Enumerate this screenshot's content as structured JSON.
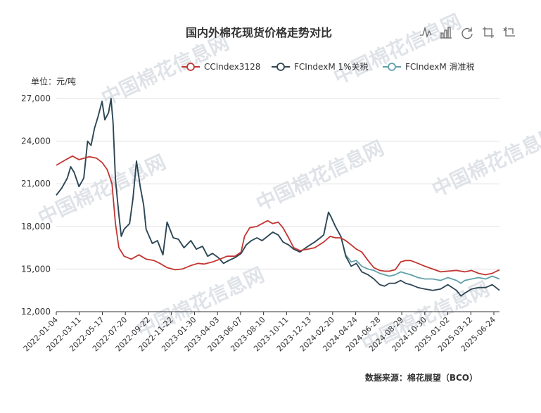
{
  "colors": {
    "s1": "#c23531",
    "s2": "#2f4554",
    "s3": "#61a0a8"
  },
  "toolbox": [
    {
      "name": "line-chart-icon"
    },
    {
      "name": "bar-chart-icon"
    },
    {
      "name": "restore-icon"
    },
    {
      "name": "zoom-icon"
    },
    {
      "name": "zoom-reset-icon"
    }
  ],
  "watermark": "中国棉花信息网",
  "chart_data": {
    "type": "line",
    "title": "国内外棉花现货价格走势对比",
    "unit_label": "单位：元/吨",
    "source": "数据来源：棉花展望（BCO）",
    "ylim": [
      12000,
      27000
    ],
    "yticks": [
      "12,000",
      "15,000",
      "18,000",
      "21,000",
      "24,000",
      "27,000"
    ],
    "ytick_values": [
      12000,
      15000,
      18000,
      21000,
      24000,
      27000
    ],
    "xlim": [
      "2022-01-04",
      "2025-07-15"
    ],
    "xticks": [
      "2022-01-04",
      "2022-03-11",
      "2022-05-17",
      "2022-07-20",
      "2022-09-22",
      "2022-11-22",
      "2023-01-30",
      "2023-04-03",
      "2023-06-07",
      "2023-08-10",
      "2023-10-11",
      "2023-12-13",
      "2024-02-20",
      "2024-04-24",
      "2024-06-28",
      "2024-08-29",
      "2024-10-30",
      "2025-01-02",
      "2025-03-12",
      "2025-06-24"
    ],
    "grid": true,
    "legend_position": "top-right",
    "series": [
      {
        "name": "CCIndex3128",
        "points": [
          [
            "2022-01-04",
            22300
          ],
          [
            "2022-02-01",
            22700
          ],
          [
            "2022-02-20",
            22950
          ],
          [
            "2022-03-11",
            22700
          ],
          [
            "2022-04-10",
            22900
          ],
          [
            "2022-05-01",
            22800
          ],
          [
            "2022-05-17",
            22500
          ],
          [
            "2022-06-01",
            22000
          ],
          [
            "2022-06-15",
            21000
          ],
          [
            "2022-06-25",
            18200
          ],
          [
            "2022-07-05",
            16500
          ],
          [
            "2022-07-20",
            15900
          ],
          [
            "2022-08-10",
            15700
          ],
          [
            "2022-09-01",
            16000
          ],
          [
            "2022-09-22",
            15700
          ],
          [
            "2022-10-15",
            15600
          ],
          [
            "2022-11-01",
            15400
          ],
          [
            "2022-11-22",
            15100
          ],
          [
            "2022-12-15",
            14950
          ],
          [
            "2023-01-05",
            15000
          ],
          [
            "2023-01-30",
            15250
          ],
          [
            "2023-02-20",
            15400
          ],
          [
            "2023-03-10",
            15350
          ],
          [
            "2023-04-03",
            15500
          ],
          [
            "2023-04-25",
            15700
          ],
          [
            "2023-05-15",
            15900
          ],
          [
            "2023-06-07",
            15900
          ],
          [
            "2023-06-25",
            16200
          ],
          [
            "2023-07-05",
            17300
          ],
          [
            "2023-07-20",
            17900
          ],
          [
            "2023-08-10",
            18000
          ],
          [
            "2023-08-25",
            18200
          ],
          [
            "2023-09-10",
            18400
          ],
          [
            "2023-09-25",
            18200
          ],
          [
            "2023-10-11",
            18300
          ],
          [
            "2023-10-25",
            17900
          ],
          [
            "2023-11-10",
            17200
          ],
          [
            "2023-11-25",
            16500
          ],
          [
            "2023-12-13",
            16300
          ],
          [
            "2024-01-05",
            16400
          ],
          [
            "2024-01-25",
            16500
          ],
          [
            "2024-02-20",
            16900
          ],
          [
            "2024-03-10",
            17300
          ],
          [
            "2024-03-25",
            17200
          ],
          [
            "2024-04-10",
            17200
          ],
          [
            "2024-04-24",
            17000
          ],
          [
            "2024-05-10",
            16700
          ],
          [
            "2024-05-25",
            16400
          ],
          [
            "2024-06-10",
            16200
          ],
          [
            "2024-06-28",
            15600
          ],
          [
            "2024-07-15",
            15100
          ],
          [
            "2024-08-01",
            14900
          ],
          [
            "2024-08-15",
            14850
          ],
          [
            "2024-08-29",
            14850
          ],
          [
            "2024-09-15",
            14950
          ],
          [
            "2024-10-01",
            15500
          ],
          [
            "2024-10-15",
            15600
          ],
          [
            "2024-10-30",
            15600
          ],
          [
            "2024-11-20",
            15400
          ],
          [
            "2024-12-10",
            15200
          ],
          [
            "2025-01-02",
            15000
          ],
          [
            "2025-01-25",
            14800
          ],
          [
            "2025-02-15",
            14850
          ],
          [
            "2025-03-12",
            14900
          ],
          [
            "2025-04-05",
            14800
          ],
          [
            "2025-04-25",
            14900
          ],
          [
            "2025-05-15",
            14700
          ],
          [
            "2025-06-05",
            14600
          ],
          [
            "2025-06-24",
            14700
          ],
          [
            "2025-07-15",
            14950
          ]
        ]
      },
      {
        "name": "FCIndexM 1%关税",
        "points": [
          [
            "2022-01-04",
            20200
          ],
          [
            "2022-01-20",
            20700
          ],
          [
            "2022-02-05",
            21400
          ],
          [
            "2022-02-15",
            22200
          ],
          [
            "2022-02-25",
            21800
          ],
          [
            "2022-03-11",
            20800
          ],
          [
            "2022-03-25",
            21400
          ],
          [
            "2022-04-05",
            24000
          ],
          [
            "2022-04-15",
            23700
          ],
          [
            "2022-04-25",
            24900
          ],
          [
            "2022-05-05",
            25700
          ],
          [
            "2022-05-17",
            26800
          ],
          [
            "2022-05-25",
            25500
          ],
          [
            "2022-06-05",
            26000
          ],
          [
            "2022-06-12",
            27000
          ],
          [
            "2022-06-18",
            25300
          ],
          [
            "2022-06-25",
            21300
          ],
          [
            "2022-07-05",
            18800
          ],
          [
            "2022-07-12",
            17300
          ],
          [
            "2022-07-20",
            17800
          ],
          [
            "2022-08-05",
            18200
          ],
          [
            "2022-08-15",
            20000
          ],
          [
            "2022-08-25",
            22600
          ],
          [
            "2022-09-05",
            20800
          ],
          [
            "2022-09-15",
            19500
          ],
          [
            "2022-09-22",
            17800
          ],
          [
            "2022-10-10",
            16800
          ],
          [
            "2022-10-25",
            17000
          ],
          [
            "2022-11-10",
            16000
          ],
          [
            "2022-11-22",
            18300
          ],
          [
            "2022-12-10",
            17200
          ],
          [
            "2022-12-25",
            17100
          ],
          [
            "2023-01-10",
            16500
          ],
          [
            "2023-01-30",
            17000
          ],
          [
            "2023-02-15",
            16400
          ],
          [
            "2023-03-05",
            16600
          ],
          [
            "2023-03-20",
            15900
          ],
          [
            "2023-04-03",
            16100
          ],
          [
            "2023-04-20",
            15800
          ],
          [
            "2023-05-05",
            15400
          ],
          [
            "2023-05-20",
            15600
          ],
          [
            "2023-06-07",
            15800
          ],
          [
            "2023-06-25",
            16100
          ],
          [
            "2023-07-10",
            16700
          ],
          [
            "2023-07-25",
            17000
          ],
          [
            "2023-08-10",
            17200
          ],
          [
            "2023-08-25",
            17000
          ],
          [
            "2023-09-10",
            17300
          ],
          [
            "2023-09-25",
            17600
          ],
          [
            "2023-10-11",
            17400
          ],
          [
            "2023-10-25",
            16900
          ],
          [
            "2023-11-10",
            16700
          ],
          [
            "2023-11-25",
            16400
          ],
          [
            "2023-12-13",
            16200
          ],
          [
            "2024-01-05",
            16600
          ],
          [
            "2024-01-25",
            16900
          ],
          [
            "2024-02-10",
            17200
          ],
          [
            "2024-02-20",
            17400
          ],
          [
            "2024-03-05",
            19000
          ],
          [
            "2024-03-12",
            18700
          ],
          [
            "2024-03-25",
            18000
          ],
          [
            "2024-04-10",
            17300
          ],
          [
            "2024-04-24",
            15900
          ],
          [
            "2024-05-10",
            15200
          ],
          [
            "2024-05-25",
            15400
          ],
          [
            "2024-06-10",
            14800
          ],
          [
            "2024-06-28",
            14600
          ],
          [
            "2024-07-15",
            14300
          ],
          [
            "2024-08-01",
            13900
          ],
          [
            "2024-08-15",
            13800
          ],
          [
            "2024-08-29",
            14000
          ],
          [
            "2024-09-15",
            14000
          ],
          [
            "2024-10-01",
            14200
          ],
          [
            "2024-10-15",
            14000
          ],
          [
            "2024-10-30",
            13900
          ],
          [
            "2024-11-20",
            13700
          ],
          [
            "2024-12-10",
            13600
          ],
          [
            "2025-01-02",
            13500
          ],
          [
            "2025-01-25",
            13600
          ],
          [
            "2025-02-15",
            13900
          ],
          [
            "2025-03-12",
            13500
          ],
          [
            "2025-03-25",
            13100
          ],
          [
            "2025-04-05",
            13300
          ],
          [
            "2025-04-25",
            13600
          ],
          [
            "2025-05-15",
            13700
          ],
          [
            "2025-06-05",
            13700
          ],
          [
            "2025-06-24",
            13900
          ],
          [
            "2025-07-15",
            13500
          ]
        ]
      },
      {
        "name": "FCIndexM 滑准税",
        "points": [
          [
            "2022-01-04",
            20200
          ],
          [
            "2022-01-20",
            20700
          ],
          [
            "2022-02-05",
            21400
          ],
          [
            "2022-02-15",
            22200
          ],
          [
            "2022-02-25",
            21800
          ],
          [
            "2022-03-11",
            20800
          ],
          [
            "2022-03-25",
            21400
          ],
          [
            "2022-04-05",
            24000
          ],
          [
            "2022-04-15",
            23700
          ],
          [
            "2022-04-25",
            24900
          ],
          [
            "2022-05-05",
            25700
          ],
          [
            "2022-05-17",
            26800
          ],
          [
            "2022-05-25",
            25500
          ],
          [
            "2022-06-05",
            26000
          ],
          [
            "2022-06-12",
            27000
          ],
          [
            "2022-06-18",
            25300
          ],
          [
            "2022-06-25",
            21300
          ],
          [
            "2022-07-05",
            18800
          ],
          [
            "2022-07-12",
            17300
          ],
          [
            "2022-07-20",
            17800
          ],
          [
            "2022-08-05",
            18200
          ],
          [
            "2022-08-15",
            20000
          ],
          [
            "2022-08-25",
            22600
          ],
          [
            "2022-09-05",
            20800
          ],
          [
            "2022-09-15",
            19500
          ],
          [
            "2022-09-22",
            17800
          ],
          [
            "2022-10-10",
            16800
          ],
          [
            "2022-10-25",
            17000
          ],
          [
            "2022-11-10",
            16000
          ],
          [
            "2022-11-22",
            18300
          ],
          [
            "2022-12-10",
            17200
          ],
          [
            "2022-12-25",
            17100
          ],
          [
            "2023-01-10",
            16500
          ],
          [
            "2023-01-30",
            17000
          ],
          [
            "2023-02-15",
            16400
          ],
          [
            "2023-03-05",
            16600
          ],
          [
            "2023-03-20",
            15900
          ],
          [
            "2023-04-03",
            16100
          ],
          [
            "2023-04-20",
            15800
          ],
          [
            "2023-05-05",
            15400
          ],
          [
            "2023-05-20",
            15600
          ],
          [
            "2023-06-07",
            15800
          ],
          [
            "2023-06-25",
            16100
          ],
          [
            "2023-07-10",
            16700
          ],
          [
            "2023-07-25",
            17000
          ],
          [
            "2023-08-10",
            17200
          ],
          [
            "2023-08-25",
            17000
          ],
          [
            "2023-09-10",
            17300
          ],
          [
            "2023-09-25",
            17600
          ],
          [
            "2023-10-11",
            17400
          ],
          [
            "2023-10-25",
            16900
          ],
          [
            "2023-11-10",
            16700
          ],
          [
            "2023-11-25",
            16400
          ],
          [
            "2023-12-13",
            16200
          ],
          [
            "2024-01-05",
            16600
          ],
          [
            "2024-01-25",
            16900
          ],
          [
            "2024-02-10",
            17200
          ],
          [
            "2024-02-20",
            17400
          ],
          [
            "2024-03-05",
            19000
          ],
          [
            "2024-03-12",
            18700
          ],
          [
            "2024-03-25",
            18000
          ],
          [
            "2024-04-10",
            17300
          ],
          [
            "2024-04-24",
            16000
          ],
          [
            "2024-05-10",
            15500
          ],
          [
            "2024-05-25",
            15600
          ],
          [
            "2024-06-10",
            15200
          ],
          [
            "2024-06-28",
            15000
          ],
          [
            "2024-07-15",
            14900
          ],
          [
            "2024-08-01",
            14700
          ],
          [
            "2024-08-15",
            14600
          ],
          [
            "2024-08-29",
            14500
          ],
          [
            "2024-09-15",
            14600
          ],
          [
            "2024-10-01",
            14800
          ],
          [
            "2024-10-15",
            14700
          ],
          [
            "2024-10-30",
            14600
          ],
          [
            "2024-11-20",
            14400
          ],
          [
            "2024-12-10",
            14300
          ],
          [
            "2025-01-02",
            14300
          ],
          [
            "2025-01-25",
            14200
          ],
          [
            "2025-02-15",
            14400
          ],
          [
            "2025-03-12",
            14200
          ],
          [
            "2025-03-25",
            14000
          ],
          [
            "2025-04-05",
            14200
          ],
          [
            "2025-04-25",
            14300
          ],
          [
            "2025-05-15",
            14400
          ],
          [
            "2025-06-05",
            14300
          ],
          [
            "2025-06-24",
            14500
          ],
          [
            "2025-07-15",
            14300
          ]
        ]
      }
    ]
  }
}
